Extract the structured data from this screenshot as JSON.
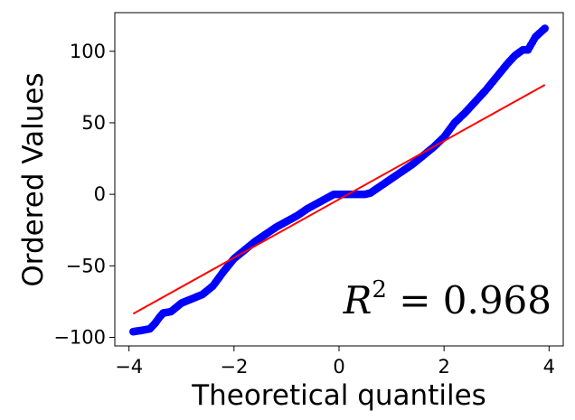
{
  "chart_data": {
    "type": "scatter",
    "title": "",
    "xlabel": "Theoretical quantiles",
    "ylabel": "Ordered Values",
    "xlim": [
      -4.27,
      4.27
    ],
    "ylim": [
      -106,
      127
    ],
    "xticks": [
      -4,
      -2,
      0,
      2,
      4
    ],
    "yticks": [
      -100,
      -50,
      0,
      50,
      100
    ],
    "grid": false,
    "legend": "none",
    "annotation": {
      "base": "R",
      "exp": "2",
      "rest": " = 0.968"
    },
    "fit_line": {
      "x": [
        -3.92,
        3.92
      ],
      "y": [
        -83.5,
        76.5
      ],
      "color": "#ff0000"
    },
    "points_color": "#0000ff",
    "series": [
      {
        "x": [
          -3.92,
          -3.74,
          -3.6,
          -3.5,
          -3.42,
          -3.35,
          -3.2,
          -3.0,
          -2.8,
          -2.6,
          -2.4,
          -2.2,
          -2.0,
          -1.8,
          -1.6,
          -1.4,
          -1.2,
          -1.0,
          -0.8,
          -0.6,
          -0.4,
          -0.2,
          -0.1,
          0.0,
          0.1,
          0.2,
          0.3,
          0.4,
          0.5,
          0.6,
          0.8,
          1.0,
          1.2,
          1.4,
          1.6,
          1.8,
          2.0,
          2.2,
          2.4,
          2.6,
          2.8,
          3.0,
          3.2,
          3.35,
          3.5,
          3.6,
          3.74,
          3.92
        ],
        "y": [
          -96,
          -95,
          -94,
          -90,
          -86,
          -83,
          -82,
          -76,
          -73,
          -70,
          -64,
          -54,
          -45,
          -39,
          -33,
          -28,
          -23,
          -19,
          -15,
          -10,
          -6,
          -2,
          0,
          0,
          0,
          0,
          0,
          0,
          0,
          1,
          6,
          11,
          16,
          21,
          27,
          33,
          40,
          50,
          57,
          65,
          73,
          82,
          91,
          97,
          101,
          101,
          110,
          116
        ]
      }
    ]
  }
}
